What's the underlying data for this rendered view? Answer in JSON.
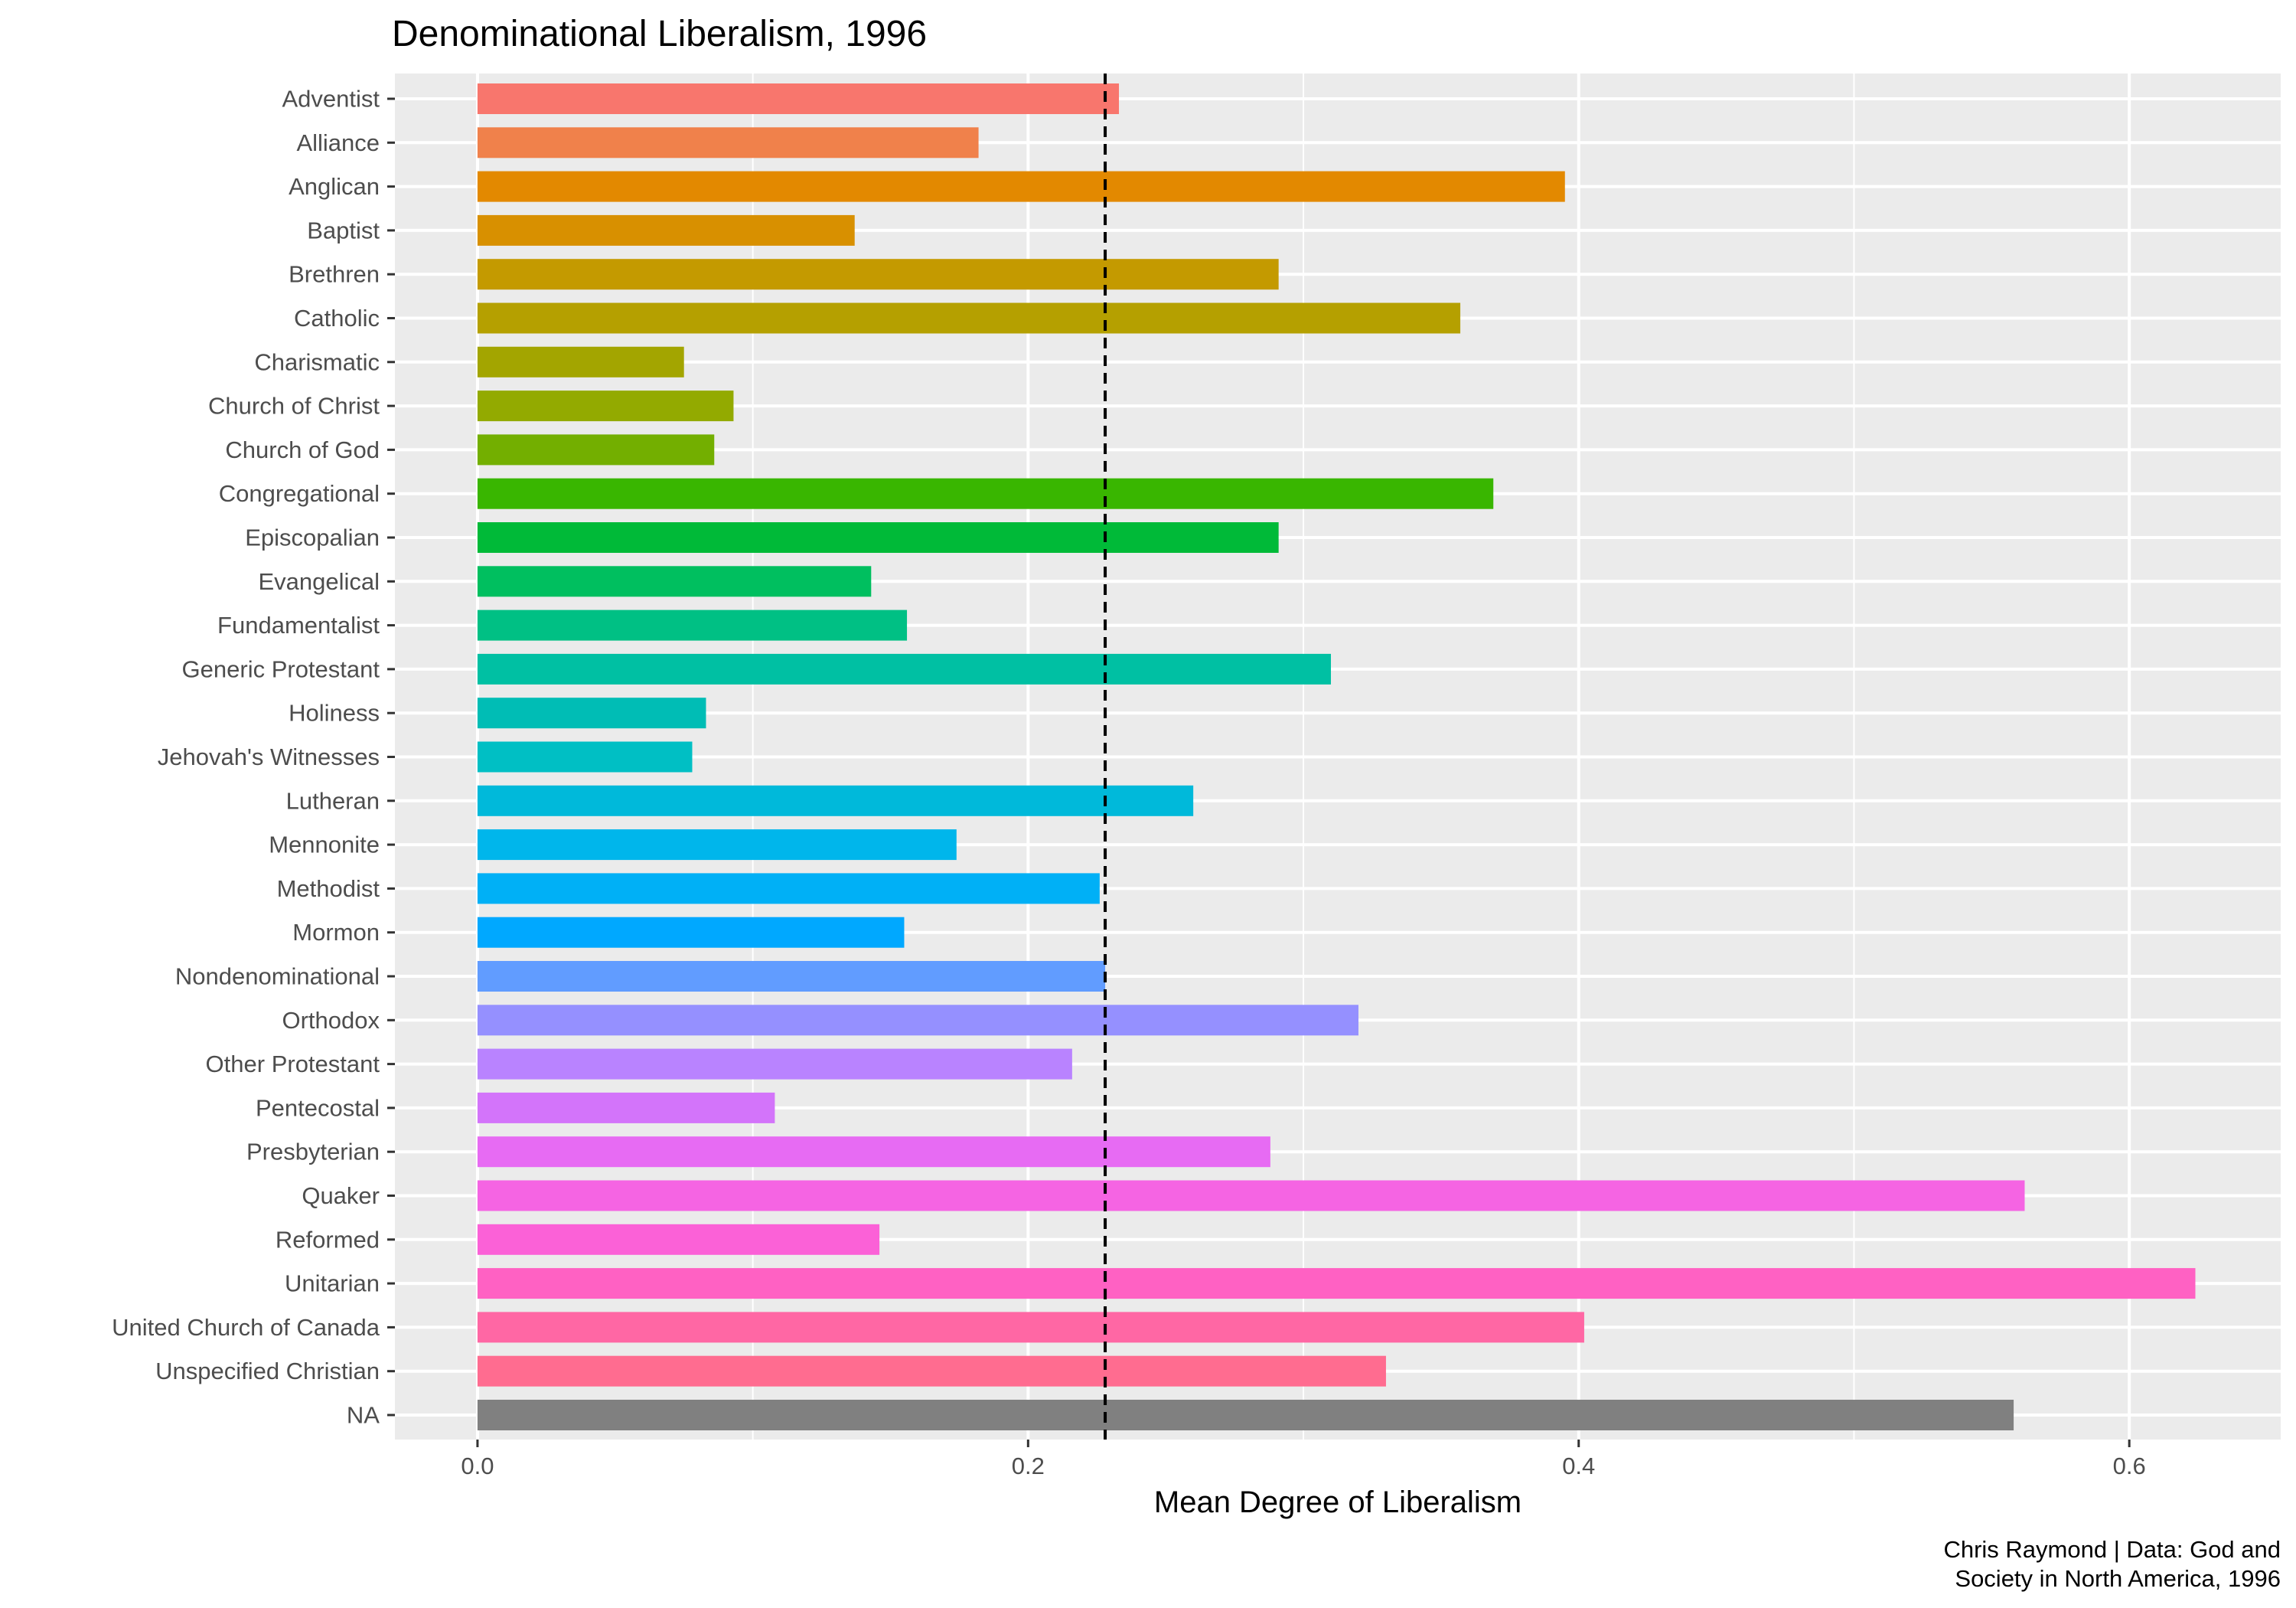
{
  "chart_data": {
    "type": "bar",
    "orientation": "horizontal",
    "title": "Denominational Liberalism, 1996",
    "xlabel": "Mean Degree of Liberalism",
    "ylabel": "",
    "caption_lines": [
      "Chris Raymond | Data: God and",
      "Society in North America, 1996"
    ],
    "xlim": [
      -0.03,
      0.655
    ],
    "x_ticks": [
      0.0,
      0.2,
      0.4,
      0.6
    ],
    "x_tick_labels": [
      "0.0",
      "0.2",
      "0.4",
      "0.6"
    ],
    "reference_line": {
      "value": 0.228,
      "style": "dashed",
      "color": "#000000"
    },
    "grid": true,
    "legend": "none",
    "panel_background": "#ebebeb",
    "categories": [
      "Adventist",
      "Alliance",
      "Anglican",
      "Baptist",
      "Brethren",
      "Catholic",
      "Charismatic",
      "Church of Christ",
      "Church of God",
      "Congregational",
      "Episcopalian",
      "Evangelical",
      "Fundamentalist",
      "Generic Protestant",
      "Holiness",
      "Jehovah's Witnesses",
      "Lutheran",
      "Mennonite",
      "Methodist",
      "Mormon",
      "Nondenominational",
      "Orthodox",
      "Other Protestant",
      "Pentecostal",
      "Presbyterian",
      "Quaker",
      "Reformed",
      "Unitarian",
      "United Church of Canada",
      "Unspecified Christian",
      "NA"
    ],
    "values": [
      0.233,
      0.182,
      0.395,
      0.137,
      0.291,
      0.357,
      0.075,
      0.093,
      0.086,
      0.369,
      0.291,
      0.143,
      0.156,
      0.31,
      0.083,
      0.078,
      0.26,
      0.174,
      0.226,
      0.155,
      0.228,
      0.32,
      0.216,
      0.108,
      0.288,
      0.562,
      0.146,
      0.624,
      0.402,
      0.33,
      0.558
    ],
    "colors": [
      "#F8766D",
      "#F0814B",
      "#E38900",
      "#D89000",
      "#C49A00",
      "#B5A000",
      "#A3A500",
      "#93AA00",
      "#73AF00",
      "#39B600",
      "#00BA38",
      "#00BF5F",
      "#00C084",
      "#00C0A3",
      "#00BDB5",
      "#00BFC4",
      "#00B9DA",
      "#00B6EB",
      "#00B0F6",
      "#00A8FF",
      "#619CFF",
      "#9590FF",
      "#B983FF",
      "#D374FA",
      "#E76BF3",
      "#F564E3",
      "#FB61D7",
      "#FF61C3",
      "#FF67A4",
      "#FF6C90",
      "#808080"
    ]
  }
}
